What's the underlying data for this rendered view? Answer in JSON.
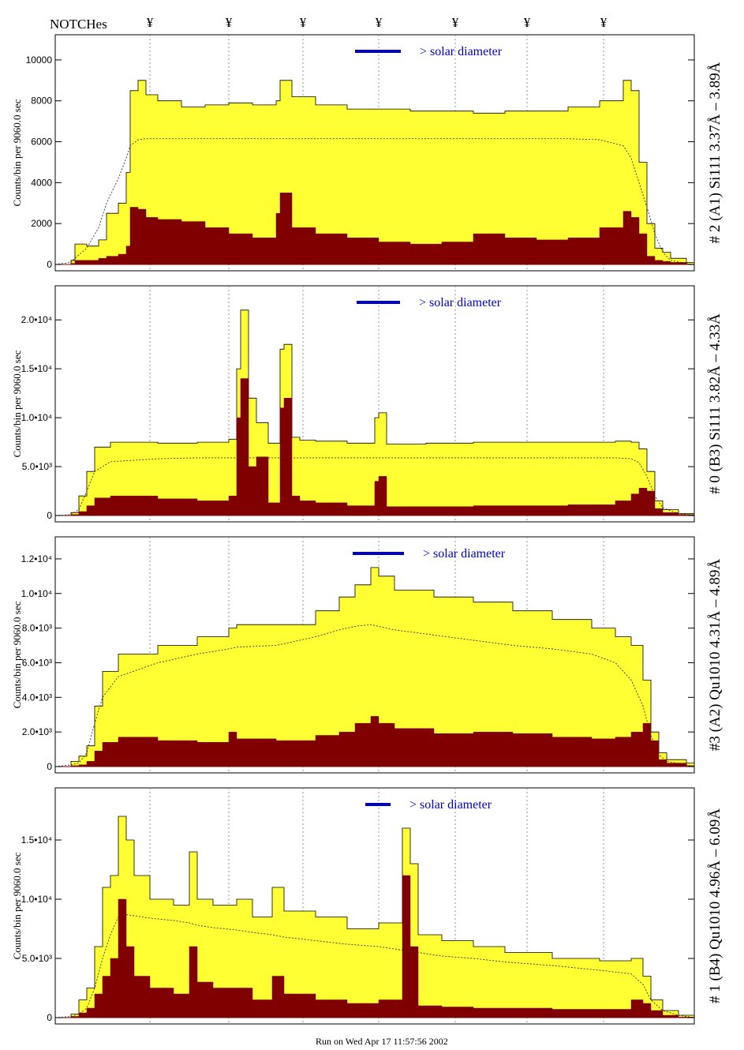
{
  "header": {
    "label": "NOTCHes",
    "marker": "¥",
    "marker_x": [
      190,
      290,
      384,
      480,
      577,
      668,
      765
    ]
  },
  "footer": {
    "text": "Run on Wed Apr 17 11:57:56 2002"
  },
  "colors": {
    "fill_total": "#ffff33",
    "fill_low": "#800000",
    "bar_annot": "#0000cc",
    "outline": "#000000"
  },
  "chart_data": [
    {
      "type": "area",
      "id": "p0",
      "right_label": "# 2 (A1) Si111  3.37Å – 3.89Å",
      "ylabel": "Counts/bin per   9060.0 sec",
      "ylim": [
        0,
        11000
      ],
      "yticks": [
        0,
        2000,
        4000,
        6000,
        8000,
        10000
      ],
      "ytick_labels": [
        "0",
        "2000",
        "4000",
        "6000",
        "8000",
        "10000"
      ],
      "annotation": "> solar diameter",
      "bar": [
        450,
        508
      ],
      "x": [
        70,
        90,
        95,
        110,
        125,
        135,
        150,
        160,
        165,
        175,
        185,
        200,
        230,
        260,
        290,
        320,
        350,
        355,
        370,
        400,
        440,
        480,
        520,
        560,
        600,
        640,
        680,
        720,
        760,
        790,
        800,
        810,
        820,
        830,
        840,
        850,
        870,
        880
      ],
      "total": [
        0,
        200,
        1000,
        900,
        1200,
        2500,
        3000,
        4500,
        8500,
        9000,
        8300,
        8000,
        7700,
        7800,
        7900,
        7800,
        8000,
        9000,
        8200,
        7800,
        7600,
        7600,
        7500,
        7500,
        7400,
        7500,
        7500,
        7700,
        8000,
        9000,
        8500,
        5000,
        2000,
        800,
        600,
        300,
        100,
        0
      ],
      "low": [
        0,
        50,
        200,
        200,
        300,
        400,
        500,
        900,
        2800,
        2700,
        2300,
        2200,
        2100,
        1800,
        1500,
        1300,
        2500,
        3500,
        1800,
        1500,
        1300,
        1100,
        1000,
        1100,
        1500,
        1300,
        1200,
        1300,
        1800,
        2600,
        2300,
        1500,
        400,
        200,
        150,
        100,
        20,
        0
      ],
      "model": [
        0,
        100,
        300,
        800,
        1800,
        3000,
        4200,
        5200,
        5800,
        6100,
        6150,
        6150,
        6150,
        6150,
        6150,
        6150,
        6150,
        6150,
        6150,
        6150,
        6150,
        6150,
        6150,
        6150,
        6150,
        6150,
        6150,
        6150,
        6100,
        5800,
        5200,
        4000,
        2800,
        1500,
        600,
        200,
        50,
        0
      ]
    },
    {
      "type": "area",
      "id": "p1",
      "right_label": "# 0 (B3) Si111  3.82Å – 4.33Å",
      "ylabel": "Counts/bin per   9060.0 sec",
      "ylim": [
        0,
        23000
      ],
      "yticks": [
        0,
        5000,
        10000,
        15000,
        20000
      ],
      "ytick_labels": [
        "0",
        "5.0•10³",
        "1.0•10⁴",
        "1.5•10⁴",
        "2.0•10⁴"
      ],
      "annotation": "> solar diameter",
      "bar": [
        452,
        507
      ],
      "x": [
        70,
        90,
        100,
        110,
        120,
        140,
        200,
        250,
        290,
        300,
        305,
        315,
        325,
        340,
        355,
        360,
        370,
        380,
        400,
        440,
        475,
        480,
        490,
        500,
        540,
        600,
        660,
        720,
        780,
        800,
        810,
        820,
        830,
        840,
        860,
        880
      ],
      "total": [
        0,
        300,
        2000,
        4500,
        7000,
        7500,
        7400,
        7500,
        7800,
        15000,
        21000,
        12000,
        9500,
        7400,
        17000,
        17500,
        8000,
        7700,
        7600,
        7400,
        10000,
        10500,
        7300,
        7300,
        7400,
        7500,
        7500,
        7500,
        7600,
        7500,
        6800,
        4500,
        1500,
        600,
        200,
        0
      ],
      "low": [
        0,
        100,
        400,
        1000,
        1800,
        2000,
        1700,
        1500,
        2000,
        10000,
        14000,
        5000,
        6000,
        1300,
        11000,
        12000,
        2000,
        1500,
        1300,
        1000,
        3500,
        4000,
        900,
        900,
        900,
        1000,
        1000,
        1100,
        1500,
        2200,
        2800,
        2500,
        700,
        300,
        100,
        0
      ],
      "model": [
        0,
        100,
        600,
        2500,
        4500,
        5500,
        5800,
        5900,
        5900,
        5900,
        5900,
        5900,
        5900,
        5900,
        5900,
        5900,
        5900,
        5900,
        5900,
        5900,
        5900,
        5900,
        5900,
        5900,
        5900,
        5900,
        5900,
        5900,
        5900,
        5800,
        5400,
        4000,
        2000,
        800,
        200,
        0
      ]
    },
    {
      "type": "area",
      "id": "p2",
      "right_label": "#3 (A2) Qu1010  4.31Å – 4.89Å",
      "ylabel": "Counts/bin per   9060.0 sec",
      "ylim": [
        0,
        13000
      ],
      "yticks": [
        0,
        2000,
        4000,
        6000,
        8000,
        10000,
        12000
      ],
      "ytick_labels": [
        "0",
        "2.0•10³",
        "4.0•10³",
        "6.0•10³",
        "8.0•10³",
        "1.0•10⁴",
        "1.2•10⁴"
      ],
      "annotation": "> solar diameter",
      "bar": [
        447,
        512
      ],
      "x": [
        70,
        90,
        100,
        110,
        120,
        130,
        150,
        200,
        250,
        290,
        300,
        350,
        400,
        430,
        450,
        470,
        480,
        500,
        550,
        600,
        650,
        700,
        750,
        780,
        800,
        815,
        825,
        835,
        845,
        870,
        880
      ],
      "total": [
        0,
        300,
        600,
        1200,
        3500,
        5500,
        6500,
        7000,
        7500,
        8000,
        8200,
        8200,
        9000,
        9800,
        10500,
        11500,
        11000,
        10200,
        9800,
        9500,
        9000,
        8500,
        8000,
        7500,
        7000,
        5000,
        2000,
        800,
        400,
        200,
        0
      ],
      "low": [
        0,
        50,
        100,
        300,
        900,
        1400,
        1700,
        1500,
        1400,
        2000,
        1600,
        1500,
        1800,
        2000,
        2500,
        2900,
        2500,
        2200,
        1900,
        2000,
        1900,
        1700,
        1600,
        1700,
        2000,
        2500,
        1500,
        400,
        200,
        50,
        0
      ],
      "model": [
        0,
        100,
        200,
        800,
        2500,
        4000,
        5200,
        6000,
        6500,
        6800,
        6900,
        7000,
        7500,
        7900,
        8100,
        8200,
        8100,
        7900,
        7600,
        7300,
        7000,
        6800,
        6500,
        6000,
        5000,
        3500,
        1800,
        700,
        300,
        100,
        0
      ]
    },
    {
      "type": "area",
      "id": "p3",
      "right_label": "# 1 (B4) Qu1010 4.96Å – 6.09Å",
      "ylabel": "Counts/bin per   9060.0 sec",
      "ylim": [
        0,
        19000
      ],
      "yticks": [
        0,
        5000,
        10000,
        15000
      ],
      "ytick_labels": [
        "0",
        "5.0•10³",
        "1.0•10⁴",
        "1.5•10⁴"
      ],
      "annotation": "> solar diameter",
      "bar": [
        463,
        495
      ],
      "x": [
        70,
        90,
        100,
        110,
        120,
        130,
        140,
        150,
        160,
        170,
        190,
        220,
        240,
        250,
        270,
        300,
        320,
        345,
        360,
        400,
        440,
        480,
        510,
        520,
        530,
        560,
        600,
        640,
        700,
        760,
        800,
        815,
        825,
        840,
        860,
        880
      ],
      "total": [
        0,
        300,
        1500,
        2500,
        6000,
        11000,
        12000,
        17000,
        15000,
        12000,
        10000,
        9500,
        14000,
        10000,
        9500,
        10000,
        8500,
        11000,
        9000,
        8500,
        7500,
        8000,
        16000,
        13000,
        7000,
        6500,
        6000,
        5500,
        5000,
        4800,
        5000,
        3500,
        1500,
        600,
        200,
        0
      ],
      "low": [
        0,
        100,
        400,
        800,
        2000,
        3500,
        5000,
        10000,
        6000,
        3500,
        2500,
        2000,
        6000,
        3000,
        2500,
        2500,
        1500,
        3500,
        2000,
        1500,
        1200,
        1500,
        12000,
        6000,
        1000,
        900,
        800,
        800,
        700,
        700,
        1500,
        1200,
        600,
        200,
        50,
        0
      ],
      "model": [
        0,
        100,
        300,
        800,
        2500,
        5000,
        7000,
        8500,
        8700,
        8600,
        8400,
        8200,
        8000,
        7800,
        7600,
        7400,
        7200,
        7000,
        6800,
        6500,
        6200,
        6000,
        5700,
        5600,
        5500,
        5200,
        5000,
        4700,
        4400,
        4000,
        3700,
        2800,
        1500,
        600,
        200,
        0
      ]
    }
  ]
}
